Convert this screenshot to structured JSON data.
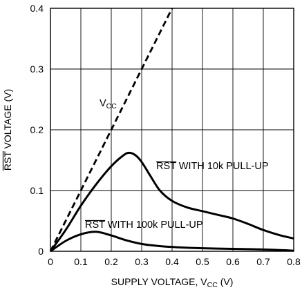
{
  "chart_data": {
    "type": "line",
    "title": "",
    "xlabel": {
      "main": "SUPPLY VOLTAGE, V",
      "sub": "CC",
      "unit": " (V)"
    },
    "ylabel": {
      "overlined": "RST",
      "rest": " VOLTAGE (V)"
    },
    "xlim": [
      0,
      0.8
    ],
    "ylim": [
      0,
      0.4
    ],
    "x_ticks": [
      "0",
      "0.1",
      "0.2",
      "0.3",
      "0.4",
      "0.5",
      "0.6",
      "0.7",
      "0.8"
    ],
    "y_ticks": [
      "0",
      "0.1",
      "0.2",
      "0.3",
      "0.4"
    ],
    "grid": true,
    "series": [
      {
        "label": {
          "main": "V",
          "sub": "CC"
        },
        "style": "dashed",
        "points": [
          [
            0,
            0
          ],
          [
            0.4,
            0.4
          ]
        ]
      },
      {
        "label": {
          "overlined": "RST",
          "rest": " WITH 10k PULL-UP"
        },
        "style": "solid",
        "points": [
          [
            0,
            0
          ],
          [
            0.05,
            0.035
          ],
          [
            0.1,
            0.075
          ],
          [
            0.15,
            0.11
          ],
          [
            0.2,
            0.14
          ],
          [
            0.24,
            0.158
          ],
          [
            0.26,
            0.162
          ],
          [
            0.28,
            0.158
          ],
          [
            0.3,
            0.147
          ],
          [
            0.33,
            0.123
          ],
          [
            0.36,
            0.1
          ],
          [
            0.4,
            0.083
          ],
          [
            0.45,
            0.072
          ],
          [
            0.5,
            0.066
          ],
          [
            0.55,
            0.06
          ],
          [
            0.6,
            0.054
          ],
          [
            0.65,
            0.045
          ],
          [
            0.7,
            0.035
          ],
          [
            0.75,
            0.027
          ],
          [
            0.8,
            0.021
          ]
        ]
      },
      {
        "label": {
          "overlined": "RST",
          "rest": " WITH 100k PULL-UP"
        },
        "style": "solid",
        "points": [
          [
            0,
            0
          ],
          [
            0.05,
            0.017
          ],
          [
            0.1,
            0.028
          ],
          [
            0.15,
            0.032
          ],
          [
            0.2,
            0.026
          ],
          [
            0.25,
            0.018
          ],
          [
            0.3,
            0.012
          ],
          [
            0.35,
            0.009
          ],
          [
            0.4,
            0.007
          ],
          [
            0.5,
            0.005
          ],
          [
            0.6,
            0.004
          ],
          [
            0.7,
            0.003
          ],
          [
            0.8,
            0.001
          ]
        ]
      }
    ]
  }
}
